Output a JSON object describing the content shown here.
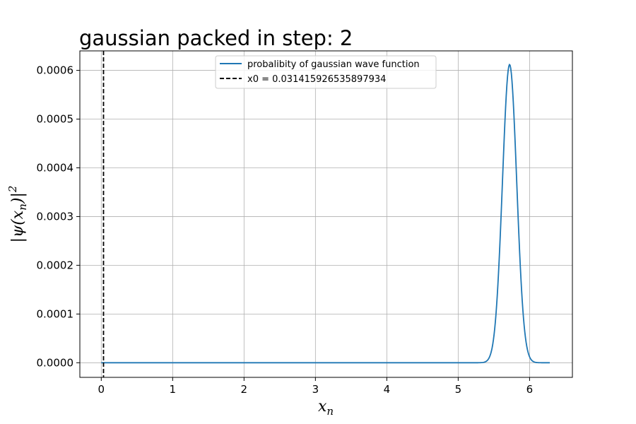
{
  "chart_data": {
    "type": "line",
    "title": "gaussian packed in step: 2",
    "xlabel": "x_n",
    "ylabel": "|ψ(x_n)|²",
    "xlim": [
      -0.3,
      6.6
    ],
    "ylim": [
      -3e-05,
      0.00064
    ],
    "x_ticks": [
      0,
      1,
      2,
      3,
      4,
      5,
      6
    ],
    "y_ticks": [
      0.0,
      0.0001,
      0.0002,
      0.0003,
      0.0004,
      0.0005,
      0.0006
    ],
    "y_tick_labels": [
      "0.0000",
      "0.0001",
      "0.0002",
      "0.0003",
      "0.0004",
      "0.0005",
      "0.0006"
    ],
    "grid": true,
    "legend_position": "top-center",
    "series": [
      {
        "name": "probalibity of gaussian wave function",
        "kind": "gaussian",
        "color": "#1f77b4",
        "x_range": [
          0.0,
          6.2832
        ],
        "peak_x": 5.72,
        "peak_y": 0.000612,
        "sigma": 0.1
      },
      {
        "name": "x0 = 0.031415926535897934",
        "kind": "vline",
        "color": "#000000",
        "linestyle": "dashed",
        "x": 0.031415926535897934
      }
    ]
  }
}
